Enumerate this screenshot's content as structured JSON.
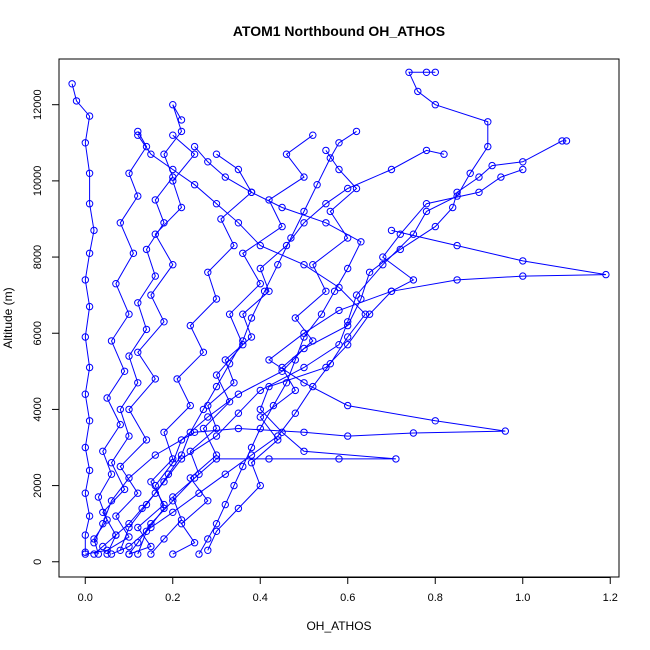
{
  "chart_data": {
    "type": "scatter",
    "title": "ATOM1 Northbound OH_ATHOS",
    "xlabel": "OH_ATHOS",
    "ylabel": "Altitude (m)",
    "xlim": [
      -0.06,
      1.22
    ],
    "ylim": [
      -400,
      13200
    ],
    "xticks": [
      0,
      0.2,
      0.4,
      0.6,
      0.8,
      1.0,
      1.2
    ],
    "xtick_labels": [
      "0.0",
      "0.2",
      "0.4",
      "0.6",
      "0.8",
      "1.0",
      "1.2"
    ],
    "yticks": [
      0,
      2000,
      4000,
      6000,
      8000,
      10000,
      12000
    ],
    "ytick_labels": [
      "0",
      "2000",
      "4000",
      "6000",
      "8000",
      "10000",
      "12000"
    ],
    "series_color": "#0000ff",
    "marker": "open-circle",
    "line": true,
    "grid": false,
    "legend": "none",
    "profiles": [
      [
        [
          0.0,
          200
        ],
        [
          0.05,
          300
        ],
        [
          0.1,
          650
        ],
        [
          0.07,
          1200
        ],
        [
          0.12,
          1800
        ],
        [
          0.08,
          2500
        ],
        [
          0.14,
          3200
        ],
        [
          0.1,
          4000
        ],
        [
          0.16,
          4800
        ],
        [
          0.12,
          5500
        ],
        [
          0.18,
          6300
        ],
        [
          0.15,
          7000
        ],
        [
          0.2,
          7800
        ],
        [
          0.16,
          8600
        ],
        [
          0.22,
          9300
        ],
        [
          0.2,
          10000
        ],
        [
          0.25,
          10700
        ],
        [
          0.2,
          11200
        ]
      ],
      [
        [
          0.03,
          200
        ],
        [
          0.02,
          600
        ],
        [
          0.05,
          1100
        ],
        [
          0.03,
          1700
        ],
        [
          0.06,
          2300
        ],
        [
          0.04,
          2900
        ],
        [
          0.08,
          3600
        ],
        [
          0.05,
          4300
        ],
        [
          0.09,
          5000
        ],
        [
          0.06,
          5800
        ],
        [
          0.1,
          6500
        ],
        [
          0.07,
          7300
        ],
        [
          0.11,
          8100
        ],
        [
          0.08,
          8900
        ],
        [
          0.12,
          9600
        ],
        [
          0.1,
          10200
        ],
        [
          0.14,
          10900
        ],
        [
          0.12,
          11300
        ]
      ],
      [
        [
          0.2,
          200
        ],
        [
          0.25,
          500
        ],
        [
          0.22,
          1000
        ],
        [
          0.28,
          1600
        ],
        [
          0.24,
          2200
        ],
        [
          0.3,
          2800
        ],
        [
          0.27,
          3500
        ],
        [
          0.33,
          4200
        ],
        [
          0.3,
          4900
        ],
        [
          0.36,
          5700
        ],
        [
          0.33,
          6500
        ],
        [
          0.4,
          7300
        ],
        [
          0.36,
          8100
        ],
        [
          0.45,
          8800
        ],
        [
          0.42,
          9500
        ],
        [
          0.5,
          10100
        ],
        [
          0.46,
          10700
        ],
        [
          0.52,
          11200
        ]
      ],
      [
        [
          0.1,
          200
        ],
        [
          0.15,
          400
        ],
        [
          0.12,
          900
        ],
        [
          0.18,
          1500
        ],
        [
          0.15,
          2100
        ],
        [
          0.2,
          2700
        ],
        [
          0.18,
          3400
        ],
        [
          0.24,
          4100
        ],
        [
          0.21,
          4800
        ],
        [
          0.27,
          5500
        ],
        [
          0.24,
          6200
        ],
        [
          0.3,
          6900
        ],
        [
          0.28,
          7600
        ],
        [
          0.34,
          8300
        ],
        [
          0.31,
          9000
        ],
        [
          0.38,
          9700
        ],
        [
          0.35,
          10300
        ],
        [
          0.3,
          10700
        ]
      ],
      [
        [
          0.28,
          300
        ],
        [
          0.3,
          800
        ],
        [
          0.35,
          1400
        ],
        [
          0.4,
          2000
        ],
        [
          0.38,
          2600
        ],
        [
          0.44,
          3200
        ],
        [
          0.4,
          3800
        ],
        [
          0.48,
          4500
        ],
        [
          0.45,
          5100
        ],
        [
          0.52,
          5800
        ],
        [
          0.48,
          6400
        ],
        [
          0.55,
          7100
        ],
        [
          0.52,
          7800
        ],
        [
          0.6,
          8500
        ],
        [
          0.56,
          9200
        ],
        [
          0.62,
          9800
        ],
        [
          0.58,
          10300
        ],
        [
          0.55,
          10800
        ]
      ],
      [
        [
          0.0,
          250
        ],
        [
          0.0,
          700
        ],
        [
          0.01,
          1200
        ],
        [
          0.0,
          1800
        ],
        [
          0.01,
          2400
        ],
        [
          0.0,
          3000
        ],
        [
          0.01,
          3700
        ],
        [
          0.0,
          4400
        ],
        [
          0.01,
          5100
        ],
        [
          0.0,
          5900
        ],
        [
          0.01,
          6700
        ],
        [
          0.0,
          7400
        ],
        [
          0.01,
          8100
        ],
        [
          0.02,
          8700
        ],
        [
          0.01,
          9400
        ],
        [
          0.01,
          10200
        ],
        [
          0.0,
          11000
        ],
        [
          0.01,
          11700
        ],
        [
          -0.02,
          12100
        ],
        [
          -0.03,
          12550
        ]
      ],
      [
        [
          0.05,
          200
        ],
        [
          0.07,
          700
        ],
        [
          0.04,
          1300
        ],
        [
          0.09,
          1900
        ],
        [
          0.06,
          2600
        ],
        [
          0.1,
          3300
        ],
        [
          0.08,
          4000
        ],
        [
          0.12,
          4700
        ],
        [
          0.1,
          5400
        ],
        [
          0.14,
          6100
        ],
        [
          0.12,
          6800
        ],
        [
          0.16,
          7500
        ],
        [
          0.14,
          8200
        ],
        [
          0.18,
          8900
        ],
        [
          0.16,
          9500
        ],
        [
          0.2,
          10100
        ],
        [
          0.18,
          10700
        ],
        [
          0.22,
          11300
        ],
        [
          0.2,
          12000
        ],
        [
          0.22,
          11600
        ]
      ],
      [
        [
          0.15,
          200
        ],
        [
          0.18,
          600
        ],
        [
          0.22,
          1100
        ],
        [
          0.2,
          1700
        ],
        [
          0.26,
          2300
        ],
        [
          0.24,
          2900
        ],
        [
          0.3,
          3500
        ],
        [
          0.28,
          4100
        ],
        [
          0.34,
          4700
        ],
        [
          0.32,
          5300
        ],
        [
          0.38,
          5900
        ],
        [
          0.36,
          6500
        ],
        [
          0.42,
          7100
        ],
        [
          0.4,
          7700
        ],
        [
          0.46,
          8300
        ],
        [
          0.5,
          8900
        ],
        [
          0.55,
          9400
        ],
        [
          0.6,
          9800
        ],
        [
          0.7,
          10300
        ],
        [
          0.78,
          10800
        ],
        [
          0.82,
          10700
        ]
      ],
      [
        [
          0.12,
          200
        ],
        [
          0.14,
          800
        ],
        [
          0.18,
          1400
        ],
        [
          0.16,
          2000
        ],
        [
          0.2,
          2600
        ],
        [
          0.22,
          3200
        ],
        [
          0.28,
          3800
        ],
        [
          0.35,
          4400
        ],
        [
          0.45,
          5000
        ],
        [
          0.5,
          5600
        ],
        [
          0.6,
          6200
        ],
        [
          0.63,
          6900
        ],
        [
          0.65,
          7600
        ],
        [
          0.72,
          8200
        ],
        [
          0.8,
          8800
        ],
        [
          0.84,
          9300
        ],
        [
          0.85,
          9700
        ],
        [
          0.9,
          10100
        ],
        [
          0.93,
          10400
        ],
        [
          1.0,
          10500
        ],
        [
          1.09,
          11050
        ],
        [
          1.1,
          11050
        ]
      ],
      [
        [
          0.08,
          300
        ],
        [
          0.1,
          900
        ],
        [
          0.14,
          1500
        ],
        [
          0.18,
          2100
        ],
        [
          0.22,
          2700
        ],
        [
          0.3,
          3300
        ],
        [
          0.35,
          3900
        ],
        [
          0.4,
          4500
        ],
        [
          0.5,
          5100
        ],
        [
          0.58,
          5700
        ],
        [
          0.6,
          6300
        ],
        [
          0.62,
          7000
        ],
        [
          0.68,
          7800
        ],
        [
          0.75,
          8600
        ],
        [
          0.78,
          9200
        ],
        [
          0.85,
          9600
        ],
        [
          0.88,
          10200
        ],
        [
          0.92,
          10900
        ],
        [
          0.92,
          11550
        ],
        [
          0.8,
          12000
        ],
        [
          0.76,
          12350
        ],
        [
          0.74,
          12850
        ],
        [
          0.78,
          12850
        ],
        [
          0.8,
          12850
        ]
      ],
      [
        [
          0.1,
          200
        ],
        [
          0.12,
          500
        ],
        [
          0.15,
          1000
        ],
        [
          0.2,
          1600
        ],
        [
          0.25,
          2200
        ],
        [
          0.3,
          2700
        ],
        [
          0.42,
          2700
        ],
        [
          0.58,
          2700
        ],
        [
          0.71,
          2700
        ],
        [
          0.5,
          2900
        ],
        [
          0.45,
          3400
        ],
        [
          0.4,
          4000
        ],
        [
          0.42,
          4600
        ],
        [
          0.55,
          5100
        ],
        [
          0.6,
          5700
        ],
        [
          0.65,
          6500
        ],
        [
          0.7,
          7100
        ],
        [
          0.75,
          7400
        ],
        [
          0.68,
          8000
        ],
        [
          0.72,
          8600
        ],
        [
          0.78,
          9400
        ],
        [
          0.9,
          9700
        ],
        [
          0.95,
          10100
        ],
        [
          1.0,
          10300
        ]
      ],
      [
        [
          0.02,
          500
        ],
        [
          0.04,
          1000
        ],
        [
          0.06,
          1600
        ],
        [
          0.1,
          2200
        ],
        [
          0.16,
          2800
        ],
        [
          0.25,
          3400
        ],
        [
          0.35,
          3500
        ],
        [
          0.5,
          3400
        ],
        [
          0.6,
          3300
        ],
        [
          0.75,
          3380
        ],
        [
          0.96,
          3430
        ],
        [
          0.8,
          3700
        ],
        [
          0.6,
          4100
        ],
        [
          0.5,
          4700
        ],
        [
          0.42,
          5300
        ],
        [
          0.5,
          6000
        ],
        [
          0.58,
          6600
        ],
        [
          0.7,
          7100
        ],
        [
          0.85,
          7400
        ],
        [
          1.0,
          7500
        ],
        [
          1.19,
          7540
        ],
        [
          1.0,
          7900
        ],
        [
          0.85,
          8300
        ],
        [
          0.7,
          8700
        ]
      ],
      [
        [
          0.06,
          200
        ],
        [
          0.1,
          400
        ],
        [
          0.15,
          900
        ],
        [
          0.2,
          1300
        ],
        [
          0.26,
          1800
        ],
        [
          0.32,
          2300
        ],
        [
          0.38,
          2800
        ],
        [
          0.44,
          3300
        ],
        [
          0.48,
          3900
        ],
        [
          0.52,
          4600
        ],
        [
          0.56,
          5200
        ],
        [
          0.6,
          5900
        ],
        [
          0.64,
          6500
        ],
        [
          0.58,
          7200
        ],
        [
          0.5,
          7800
        ],
        [
          0.4,
          8300
        ],
        [
          0.35,
          8900
        ],
        [
          0.3,
          9400
        ],
        [
          0.25,
          9900
        ],
        [
          0.2,
          10300
        ],
        [
          0.15,
          10700
        ],
        [
          0.12,
          11200
        ]
      ],
      [
        [
          0.26,
          200
        ],
        [
          0.28,
          600
        ],
        [
          0.3,
          1000
        ],
        [
          0.32,
          1500
        ],
        [
          0.34,
          2000
        ],
        [
          0.36,
          2500
        ],
        [
          0.38,
          3000
        ],
        [
          0.4,
          3500
        ],
        [
          0.43,
          4100
        ],
        [
          0.46,
          4700
        ],
        [
          0.48,
          5300
        ],
        [
          0.5,
          5900
        ],
        [
          0.54,
          6500
        ],
        [
          0.57,
          7100
        ],
        [
          0.6,
          7700
        ],
        [
          0.63,
          8400
        ],
        [
          0.55,
          8900
        ],
        [
          0.45,
          9300
        ],
        [
          0.38,
          9700
        ],
        [
          0.32,
          10100
        ],
        [
          0.28,
          10500
        ],
        [
          0.25,
          10900
        ]
      ],
      [
        [
          0.02,
          200
        ],
        [
          0.04,
          400
        ],
        [
          0.07,
          700
        ],
        [
          0.1,
          1000
        ],
        [
          0.13,
          1400
        ],
        [
          0.16,
          1800
        ],
        [
          0.19,
          2300
        ],
        [
          0.22,
          2800
        ],
        [
          0.24,
          3400
        ],
        [
          0.27,
          4000
        ],
        [
          0.3,
          4600
        ],
        [
          0.33,
          5200
        ],
        [
          0.36,
          5800
        ],
        [
          0.38,
          6400
        ],
        [
          0.41,
          7100
        ],
        [
          0.44,
          7800
        ],
        [
          0.47,
          8500
        ],
        [
          0.5,
          9200
        ],
        [
          0.53,
          9900
        ],
        [
          0.56,
          10600
        ],
        [
          0.58,
          11000
        ],
        [
          0.62,
          11300
        ]
      ]
    ]
  }
}
